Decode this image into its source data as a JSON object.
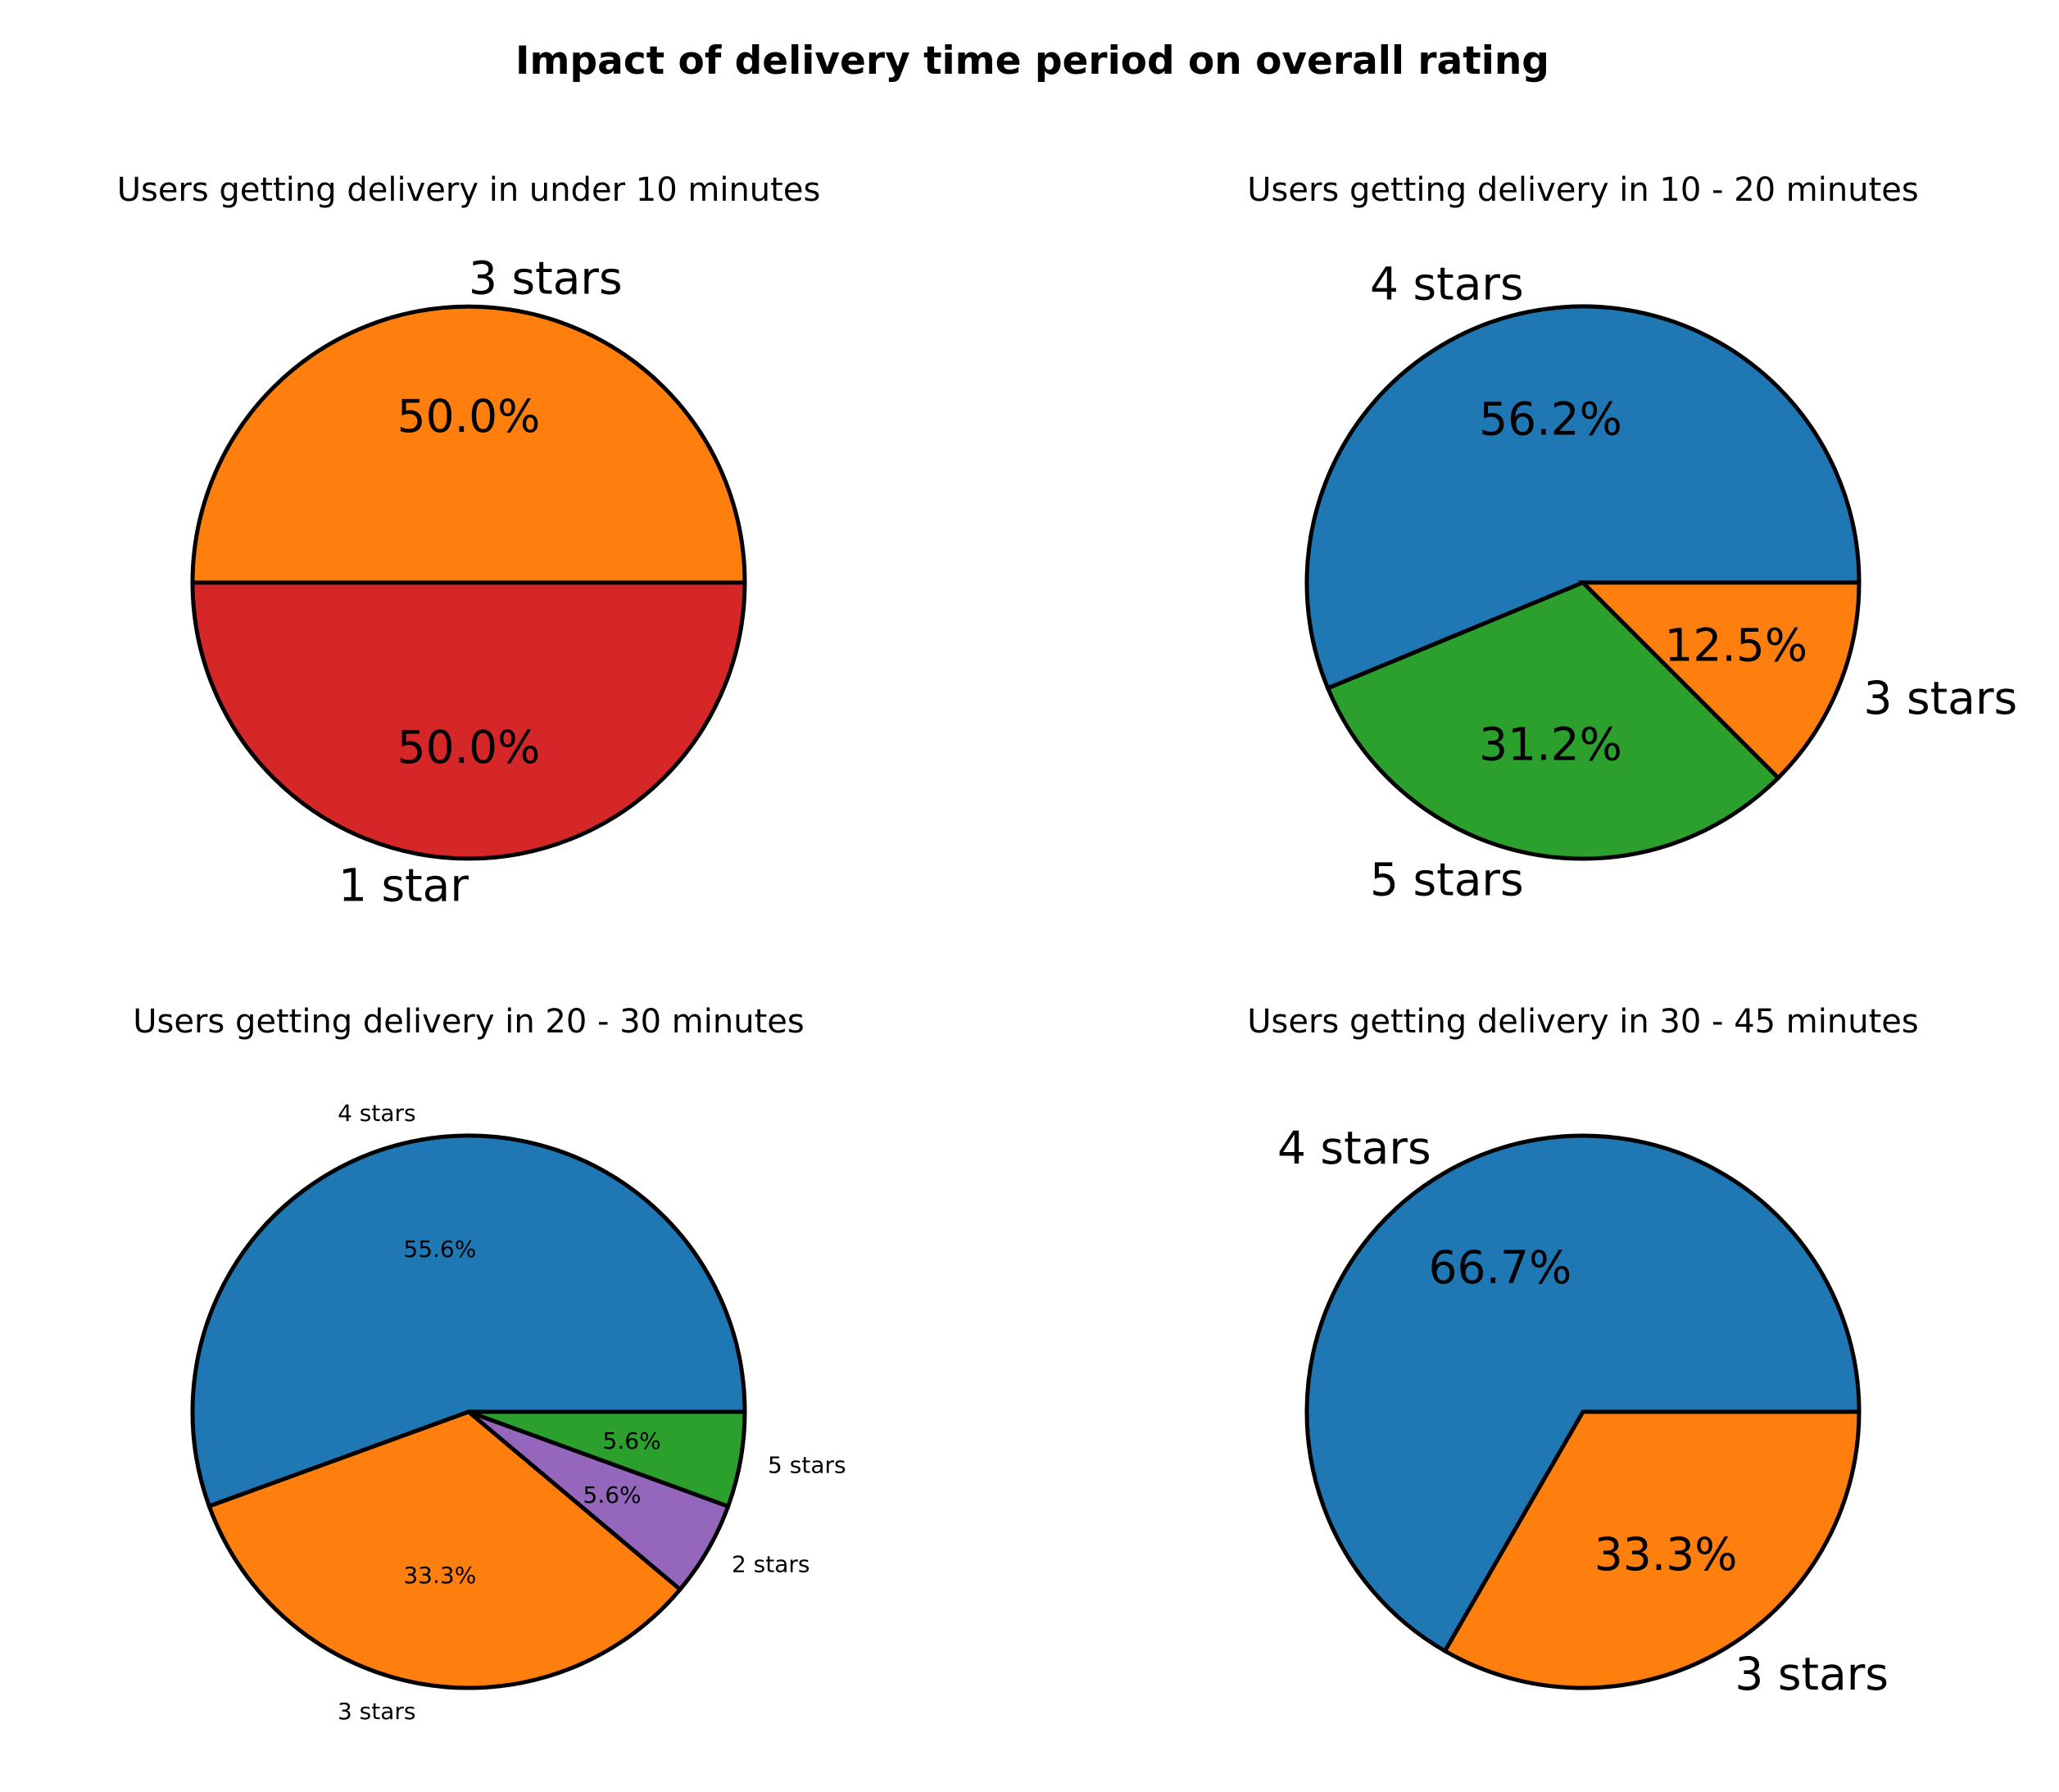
{
  "title": "Impact of delivery time period on overall rating",
  "chart_data": [
    {
      "type": "pie",
      "title": "Users getting delivery in under 10 minutes",
      "slices": [
        {
          "label": "3 stars",
          "value": 50.0,
          "pct_label": "50.0%",
          "color": "#ff7f0e"
        },
        {
          "label": "1 star",
          "value": 50.0,
          "pct_label": "50.0%",
          "color": "#d62728"
        }
      ]
    },
    {
      "type": "pie",
      "title": "Users getting delivery in 10 - 20 minutes",
      "slices": [
        {
          "label": "4 stars",
          "value": 56.25,
          "pct_label": "56.2%",
          "color": "#1f77b4"
        },
        {
          "label": "5 stars",
          "value": 31.25,
          "pct_label": "31.2%",
          "color": "#2ca02c"
        },
        {
          "label": "3 stars",
          "value": 12.5,
          "pct_label": "12.5%",
          "color": "#ff7f0e"
        }
      ]
    },
    {
      "type": "pie",
      "title": "Users getting delivery in 20 - 30 minutes",
      "slices": [
        {
          "label": "4 stars",
          "value": 55.56,
          "pct_label": "55.6%",
          "color": "#1f77b4"
        },
        {
          "label": "3 stars",
          "value": 33.33,
          "pct_label": "33.3%",
          "color": "#ff7f0e"
        },
        {
          "label": "2 stars",
          "value": 5.56,
          "pct_label": "5.6%",
          "color": "#9467bd"
        },
        {
          "label": "5 stars",
          "value": 5.56,
          "pct_label": "5.6%",
          "color": "#2ca02c"
        }
      ]
    },
    {
      "type": "pie",
      "title": "Users getting delivery in 30 - 45 minutes",
      "slices": [
        {
          "label": "4 stars",
          "value": 66.67,
          "pct_label": "66.7%",
          "color": "#1f77b4"
        },
        {
          "label": "3 stars",
          "value": 33.33,
          "pct_label": "33.3%",
          "color": "#ff7f0e"
        }
      ]
    }
  ]
}
